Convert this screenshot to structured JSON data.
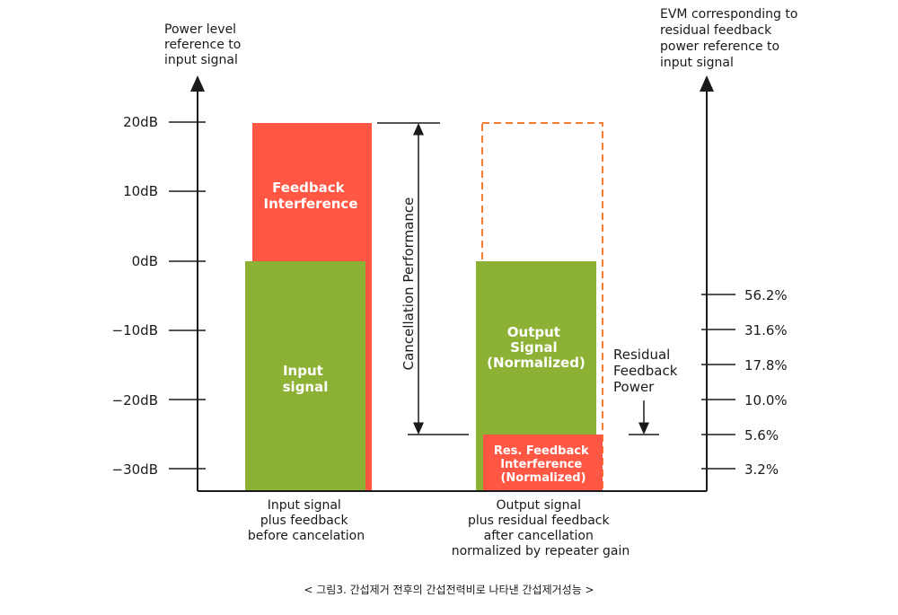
{
  "left_axis": {
    "title": [
      "Power level",
      "reference to",
      "input signal"
    ],
    "ticks": [
      "20dB",
      "10dB",
      "0dB",
      "−10dB",
      "−20dB",
      "−30dB"
    ]
  },
  "right_axis": {
    "title": [
      "EVM corresponding to",
      "residual feedback",
      "power reference to",
      "input signal"
    ],
    "ticks": [
      "56.2%",
      "31.6%",
      "17.8%",
      "10.0%",
      "5.6%",
      "3.2%"
    ]
  },
  "bars": {
    "feedback_interference": [
      "Feedback",
      "Interference"
    ],
    "input_signal": [
      "Input",
      "signal"
    ],
    "output_signal": [
      "Output",
      "Signal",
      "(Normalized)"
    ],
    "res_feedback": [
      "Res. Feedback",
      "Interference",
      "(Normalized)"
    ]
  },
  "annotations": {
    "cancellation": "Cancellation Performance",
    "residual": [
      "Residual",
      "Feedback",
      "Power"
    ]
  },
  "categories": {
    "left": [
      "Input signal",
      "plus feedback",
      "before cancelation"
    ],
    "right": [
      "Output signal",
      "plus residual feedback",
      "after cancellation",
      "normalized by repeater gain"
    ]
  },
  "caption": "< 그림3. 간섭제거 전후의 간섭전력비로 나타낸 간섭제거성능 >",
  "colors": {
    "red": "#ff5744",
    "green": "#8cb135",
    "dashed": "#f47b30",
    "axis": "#1a1a1a"
  }
}
